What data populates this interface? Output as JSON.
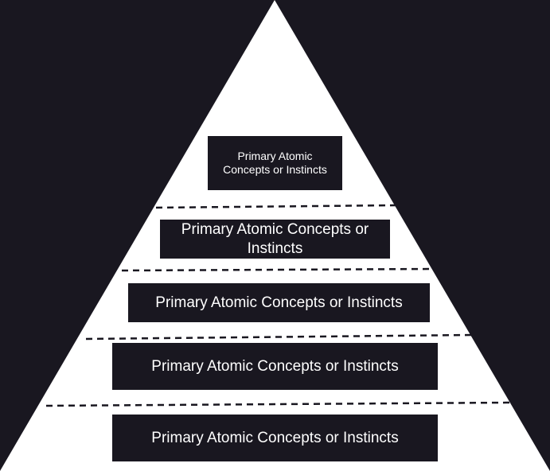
{
  "diagram": {
    "type": "pyramid",
    "background_color": "#191720",
    "pyramid_color": "#ffffff",
    "box_color": "#191720",
    "text_color": "#ffffff",
    "divider_style": "dashed",
    "tiers": [
      {
        "label": "Primary Atomic Concepts or Instincts"
      },
      {
        "label": "Primary Atomic Concepts or Instincts"
      },
      {
        "label": "Primary Atomic Concepts or Instincts"
      },
      {
        "label": "Primary Atomic Concepts or Instincts"
      },
      {
        "label": "Primary Atomic Concepts or Instincts"
      }
    ]
  }
}
